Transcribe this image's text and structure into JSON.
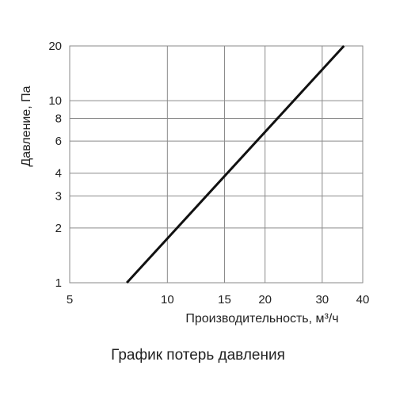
{
  "chart_data": {
    "type": "line",
    "title": "",
    "caption": "График потерь давления",
    "xlabel": "Производительность, м³/ч",
    "ylabel": "Давление, Па",
    "x_scale": "log",
    "y_scale": "log",
    "xlim": [
      5,
      40
    ],
    "ylim": [
      1,
      20
    ],
    "x_ticks": [
      5,
      10,
      15,
      20,
      30,
      40
    ],
    "y_ticks": [
      1,
      2,
      3,
      4,
      6,
      8,
      10,
      20
    ],
    "grid": true,
    "legend": "none",
    "series": [
      {
        "x": [
          7.5,
          35
        ],
        "y": [
          1,
          20
        ]
      }
    ],
    "colors": {
      "line": "#111111",
      "grid": "#8a8a8a",
      "frame": "#8a8a8a"
    }
  }
}
